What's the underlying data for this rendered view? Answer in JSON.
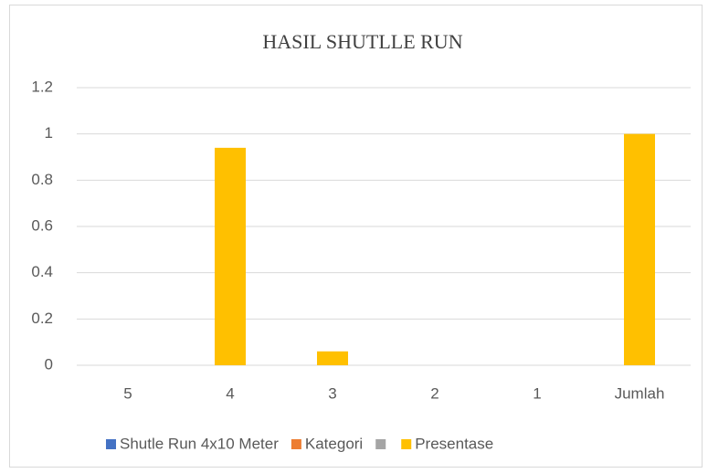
{
  "chart_data": {
    "type": "bar",
    "title": "HASIL SHUTLLE RUN",
    "categories": [
      "5",
      "4",
      "3",
      "2",
      "1",
      "Jumlah"
    ],
    "series": [
      {
        "name": "Shutle Run 4x10 Meter",
        "color": "#4472c4",
        "values": [
          null,
          null,
          null,
          null,
          null,
          null
        ]
      },
      {
        "name": "Kategori",
        "color": "#ed7d31",
        "values": [
          null,
          null,
          null,
          null,
          null,
          null
        ]
      },
      {
        "name": null,
        "color": "#a5a5a5",
        "values": [
          null,
          null,
          null,
          null,
          null,
          null
        ]
      },
      {
        "name": "Presentase",
        "color": "#ffc000",
        "values": [
          0,
          0.94,
          0.06,
          0,
          0,
          1
        ]
      }
    ],
    "ylim": [
      0,
      1.2
    ],
    "yticks": [
      0,
      0.2,
      0.4,
      0.6,
      0.8,
      1,
      1.2
    ],
    "grid": true,
    "legend": "bottom"
  }
}
